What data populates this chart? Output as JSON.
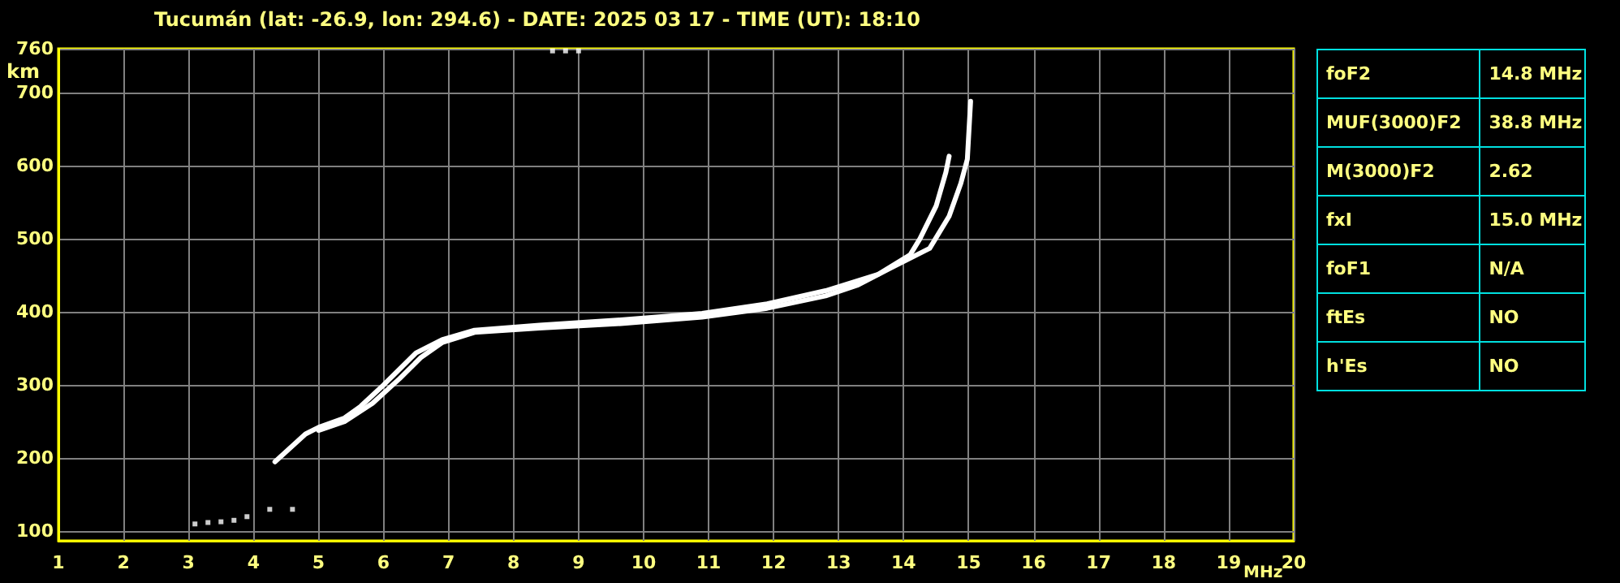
{
  "chart_data": [
    {
      "type": "line",
      "title": "Tucumán (lat: -26.9, lon: 294.6) - DATE: 2025 03 17 - TIME (UT): 18:10",
      "xlabel": "MHz",
      "ylabel": "km",
      "xlim": [
        1,
        20
      ],
      "xticks": [
        1,
        2,
        3,
        4,
        5,
        6,
        7,
        8,
        9,
        10,
        11,
        12,
        13,
        14,
        15,
        16,
        17,
        18,
        19,
        20
      ],
      "ylim": [
        87,
        760
      ],
      "yticks": [
        100,
        200,
        300,
        400,
        500,
        600,
        700,
        760
      ],
      "grid": true,
      "line_style": "solid",
      "series": [
        {
          "color": "#ffffff",
          "x": [
            4.33,
            4.8,
            5.0,
            5.4,
            5.65,
            6.0,
            6.25,
            6.5,
            6.9,
            7.4,
            8.4,
            9.65,
            10.9,
            11.9,
            12.8,
            13.6,
            14.1,
            14.25,
            14.5,
            14.65,
            14.7
          ],
          "values": [
            195,
            233,
            242,
            255,
            271,
            300,
            322,
            344,
            362,
            375,
            382,
            389,
            398,
            411,
            429,
            451,
            478,
            500,
            545,
            591,
            613
          ]
        },
        {
          "color": "#ffffff",
          "x": [
            5.0,
            5.4,
            5.83,
            6.25,
            6.58,
            6.9,
            7.4,
            8.4,
            9.65,
            10.9,
            11.9,
            12.8,
            13.3,
            13.8,
            14.4,
            14.7,
            14.88,
            14.98,
            15.03
          ],
          "values": [
            238,
            250,
            275,
            309,
            338,
            358,
            372,
            378,
            384,
            393,
            405,
            422,
            437,
            460,
            487,
            531,
            576,
            609,
            688
          ]
        },
        {
          "type": "scatter",
          "marker": "square",
          "color": "#ffffff",
          "x": [
            3.1,
            3.3,
            3.5,
            3.7,
            3.9,
            4.25,
            4.6,
            8.6,
            8.8,
            9.0
          ],
          "values": [
            110,
            112,
            113,
            115,
            120,
            130,
            130,
            757,
            757,
            757
          ]
        }
      ]
    },
    {
      "type": "other",
      "annotations": [
        "foF2",
        "14.8 MHz",
        "MUF(3000)F2",
        "38.8 MHz",
        "M(3000)F2",
        "2.62",
        "fxI",
        "15.0 MHz",
        "foF1",
        "N/A",
        "ftEs",
        "NO",
        "h'Es",
        "NO"
      ]
    }
  ]
}
